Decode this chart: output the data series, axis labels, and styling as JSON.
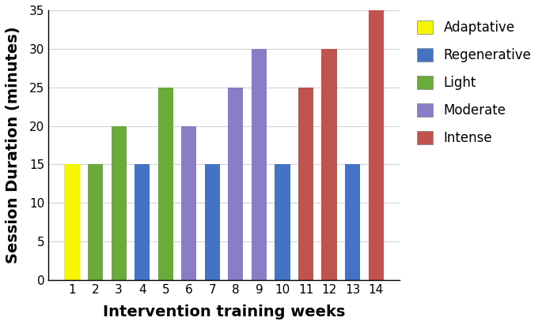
{
  "weeks": [
    1,
    2,
    3,
    4,
    5,
    6,
    7,
    8,
    9,
    10,
    11,
    12,
    13,
    14
  ],
  "values": [
    15,
    15,
    20,
    15,
    25,
    20,
    15,
    25,
    30,
    15,
    25,
    30,
    15,
    35
  ],
  "colors": [
    "#f5f500",
    "#6aab3a",
    "#6aab3a",
    "#4472c4",
    "#6aab3a",
    "#8b7cc8",
    "#4472c4",
    "#8b7cc8",
    "#8b7cc8",
    "#4472c4",
    "#c0534e",
    "#c0534e",
    "#4472c4",
    "#c0534e"
  ],
  "legend_labels": [
    "Adaptative",
    "Regenerative",
    "Light",
    "Moderate",
    "Intense"
  ],
  "legend_colors": [
    "#f5f500",
    "#4472c4",
    "#6aab3a",
    "#8b7cc8",
    "#c0534e"
  ],
  "xlabel": "Intervention training weeks",
  "ylabel": "Session Duration (minutes)",
  "ylim": [
    0,
    35
  ],
  "yticks": [
    0,
    5,
    10,
    15,
    20,
    25,
    30,
    35
  ],
  "bar_width": 0.65,
  "axis_fontsize": 14,
  "tick_fontsize": 11,
  "legend_fontsize": 12
}
